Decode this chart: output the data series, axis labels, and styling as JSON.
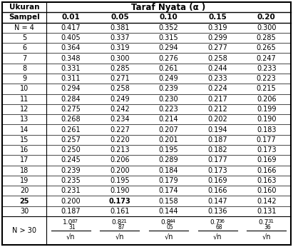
{
  "col_headers": [
    "0.01",
    "0.05",
    "0.10",
    "0.15",
    "0.20"
  ],
  "rows": [
    {
      "label": "N = 4",
      "bold_label": false,
      "values": [
        "0.417",
        "0.381",
        "0.352",
        "0.319",
        "0.300"
      ],
      "bold_values": [
        false,
        false,
        false,
        false,
        false
      ]
    },
    {
      "label": "5",
      "bold_label": false,
      "values": [
        "0.405",
        "0.337",
        "0.315",
        "0.299",
        "0.285"
      ],
      "bold_values": [
        false,
        false,
        false,
        false,
        false
      ]
    },
    {
      "label": "6",
      "bold_label": false,
      "values": [
        "0.364",
        "0.319",
        "0.294",
        "0.277",
        "0.265"
      ],
      "bold_values": [
        false,
        false,
        false,
        false,
        false
      ]
    },
    {
      "label": "7",
      "bold_label": false,
      "values": [
        "0.348",
        "0.300",
        "0.276",
        "0.258",
        "0.247"
      ],
      "bold_values": [
        false,
        false,
        false,
        false,
        false
      ]
    },
    {
      "label": "8",
      "bold_label": false,
      "values": [
        "0.331",
        "0.285",
        "0.261",
        "0.244",
        "0.233"
      ],
      "bold_values": [
        false,
        false,
        false,
        false,
        false
      ]
    },
    {
      "label": "9",
      "bold_label": false,
      "values": [
        "0.311",
        "0.271",
        "0.249",
        "0.233",
        "0.223"
      ],
      "bold_values": [
        false,
        false,
        false,
        false,
        false
      ]
    },
    {
      "label": "10",
      "bold_label": false,
      "values": [
        "0.294",
        "0.258",
        "0.239",
        "0.224",
        "0.215"
      ],
      "bold_values": [
        false,
        false,
        false,
        false,
        false
      ]
    },
    {
      "label": "11",
      "bold_label": false,
      "values": [
        "0.284",
        "0.249",
        "0.230",
        "0.217",
        "0.206"
      ],
      "bold_values": [
        false,
        false,
        false,
        false,
        false
      ]
    },
    {
      "label": "12",
      "bold_label": false,
      "values": [
        "0.275",
        "0.242",
        "0.223",
        "0.212",
        "0.199"
      ],
      "bold_values": [
        false,
        false,
        false,
        false,
        false
      ]
    },
    {
      "label": "13",
      "bold_label": false,
      "values": [
        "0.268",
        "0.234",
        "0.214",
        "0.202",
        "0.190"
      ],
      "bold_values": [
        false,
        false,
        false,
        false,
        false
      ]
    },
    {
      "label": "14",
      "bold_label": false,
      "values": [
        "0.261",
        "0.227",
        "0.207",
        "0.194",
        "0.183"
      ],
      "bold_values": [
        false,
        false,
        false,
        false,
        false
      ]
    },
    {
      "label": "15",
      "bold_label": false,
      "values": [
        "0.257",
        "0.220",
        "0.201",
        "0.187",
        "0.177"
      ],
      "bold_values": [
        false,
        false,
        false,
        false,
        false
      ]
    },
    {
      "label": "16",
      "bold_label": false,
      "values": [
        "0.250",
        "0.213",
        "0.195",
        "0.182",
        "0.173"
      ],
      "bold_values": [
        false,
        false,
        false,
        false,
        false
      ]
    },
    {
      "label": "17",
      "bold_label": false,
      "values": [
        "0.245",
        "0.206",
        "0.289",
        "0.177",
        "0.169"
      ],
      "bold_values": [
        false,
        false,
        false,
        false,
        false
      ]
    },
    {
      "label": "18",
      "bold_label": false,
      "values": [
        "0.239",
        "0.200",
        "0.184",
        "0.173",
        "0.166"
      ],
      "bold_values": [
        false,
        false,
        false,
        false,
        false
      ]
    },
    {
      "label": "19",
      "bold_label": false,
      "values": [
        "0.235",
        "0.195",
        "0.179",
        "0.169",
        "0.163"
      ],
      "bold_values": [
        false,
        false,
        false,
        false,
        false
      ]
    },
    {
      "label": "20",
      "bold_label": false,
      "values": [
        "0.231",
        "0.190",
        "0.174",
        "0.166",
        "0.160"
      ],
      "bold_values": [
        false,
        false,
        false,
        false,
        false
      ]
    },
    {
      "label": "25",
      "bold_label": true,
      "values": [
        "0.200",
        "0.173",
        "0.158",
        "0.147",
        "0.142"
      ],
      "bold_values": [
        false,
        true,
        false,
        false,
        false
      ]
    },
    {
      "label": "30",
      "bold_label": false,
      "values": [
        "0.187",
        "0.161",
        "0.144",
        "0.136",
        "0.131"
      ],
      "bold_values": [
        false,
        false,
        false,
        false,
        false
      ]
    }
  ],
  "last_row_label": "N > 30",
  "fractions": [
    {
      "main": "1.0",
      "sup": "87",
      "sub": "31"
    },
    {
      "main": "0.8",
      "sup": "21",
      "sub": "87"
    },
    {
      "main": "0.8",
      "sup": "44",
      "sub": "05"
    },
    {
      "main": "0.7",
      "sup": "36",
      "sub": "68"
    },
    {
      "main": "0.7",
      "sup": "31",
      "sub": "36"
    }
  ],
  "bg_color": "#ffffff"
}
